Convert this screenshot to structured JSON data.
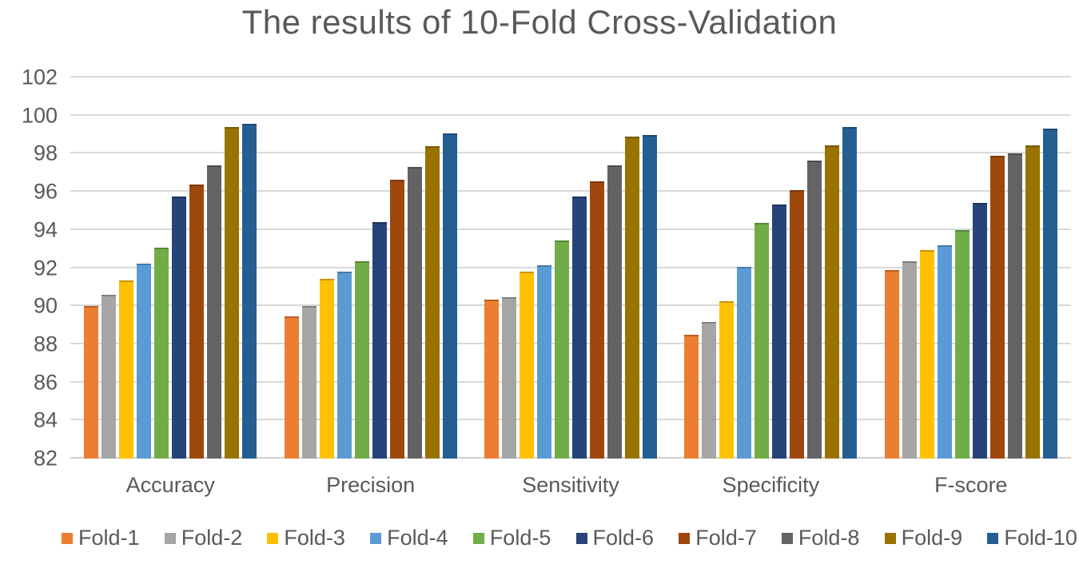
{
  "title": "The results of 10-Fold Cross-Validation",
  "chart_data": {
    "type": "bar",
    "title": "The results of 10-Fold Cross-Validation",
    "categories": [
      "Accuracy",
      "Precision",
      "Sensitivity",
      "Specificity",
      "F-score"
    ],
    "series": [
      {
        "name": "Fold-1",
        "color": "#ED7D31",
        "values": [
          90.0,
          89.45,
          90.35,
          88.5,
          91.9
        ]
      },
      {
        "name": "Fold-2",
        "color": "#A5A5A5",
        "values": [
          90.6,
          90.0,
          90.45,
          89.15,
          92.35
        ]
      },
      {
        "name": "Fold-3",
        "color": "#FFC000",
        "values": [
          91.35,
          91.45,
          91.8,
          90.25,
          92.95
        ]
      },
      {
        "name": "Fold-4",
        "color": "#5B9BD5",
        "values": [
          92.25,
          91.8,
          92.15,
          92.05,
          93.2
        ]
      },
      {
        "name": "Fold-5",
        "color": "#70AD47",
        "values": [
          93.05,
          92.35,
          93.45,
          94.35,
          94.0
        ]
      },
      {
        "name": "Fold-6",
        "color": "#264478",
        "values": [
          95.75,
          94.4,
          95.75,
          95.35,
          95.4
        ]
      },
      {
        "name": "Fold-7",
        "color": "#9E480E",
        "values": [
          96.4,
          96.65,
          96.55,
          96.1,
          97.9
        ]
      },
      {
        "name": "Fold-8",
        "color": "#636363",
        "values": [
          97.4,
          97.3,
          97.4,
          97.65,
          98.0
        ]
      },
      {
        "name": "Fold-9",
        "color": "#997300",
        "values": [
          99.4,
          98.4,
          98.9,
          98.45,
          98.45
        ]
      },
      {
        "name": "Fold-10",
        "color": "#255E91",
        "values": [
          99.55,
          99.05,
          99.0,
          99.4,
          99.3
        ]
      }
    ],
    "ylim": [
      82,
      102
    ],
    "yticks": [
      82,
      84,
      86,
      88,
      90,
      92,
      94,
      96,
      98,
      100,
      102
    ],
    "grid": true,
    "legend_position": "bottom",
    "axis_text_color": "#595959",
    "gridline_color": "#D9D9D9"
  }
}
